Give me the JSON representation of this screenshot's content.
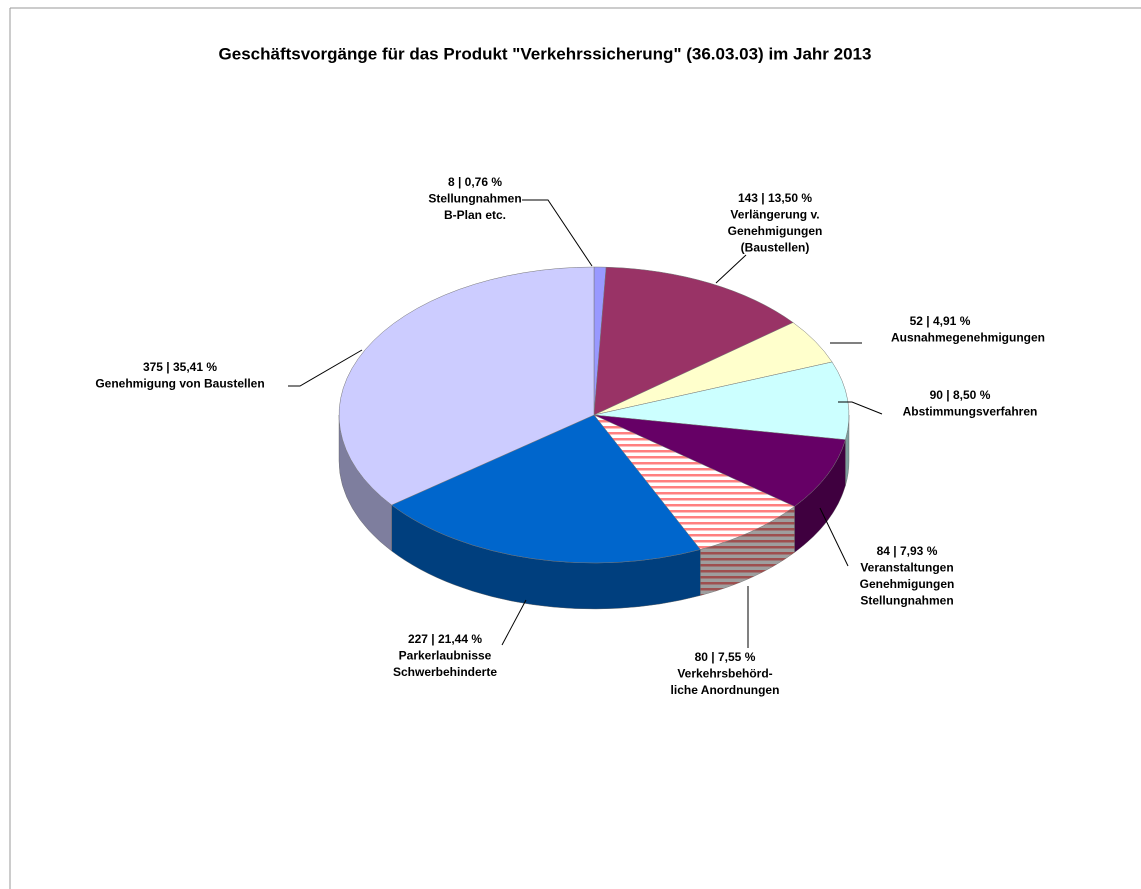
{
  "chart_data": {
    "type": "pie3d",
    "title": "Geschäftsvorgänge für das Produkt \"Verkehrssicherung\" (36.03.03) im Jahr 2013",
    "categories": [
      [
        "Stellungnahmen",
        "B-Plan etc."
      ],
      [
        "Verlängerung v.",
        "Genehmigungen",
        "(Baustellen)"
      ],
      [
        "Ausnahmegenehmigungen"
      ],
      [
        "Abstimmungsverfahren"
      ],
      [
        "Veranstaltungen",
        "Genehmigungen",
        "Stellungnahmen"
      ],
      [
        "Verkehrsbehörd-",
        "liche Anordnungen"
      ],
      [
        "Parkerlaubnisse",
        "Schwerbehinderte"
      ],
      [
        "Genehmigung von Baustellen"
      ]
    ],
    "values": [
      8,
      143,
      52,
      90,
      84,
      80,
      227,
      375
    ],
    "value_labels": [
      "8 | 0,76 %",
      "143 | 13,50 %",
      "52 | 4,91 %",
      "90 | 8,50 %",
      "84 | 7,93 %",
      "80 | 7,55 %",
      "227 | 21,44 %",
      "375 | 35,41 %"
    ],
    "colors": [
      "#9999ff",
      "#993366",
      "#ffffcc",
      "#ccffff",
      "#660066",
      "#ff8080",
      "#0066cc",
      "#ccccff"
    ],
    "hatched": [
      false,
      false,
      false,
      false,
      false,
      true,
      false,
      false
    ]
  }
}
